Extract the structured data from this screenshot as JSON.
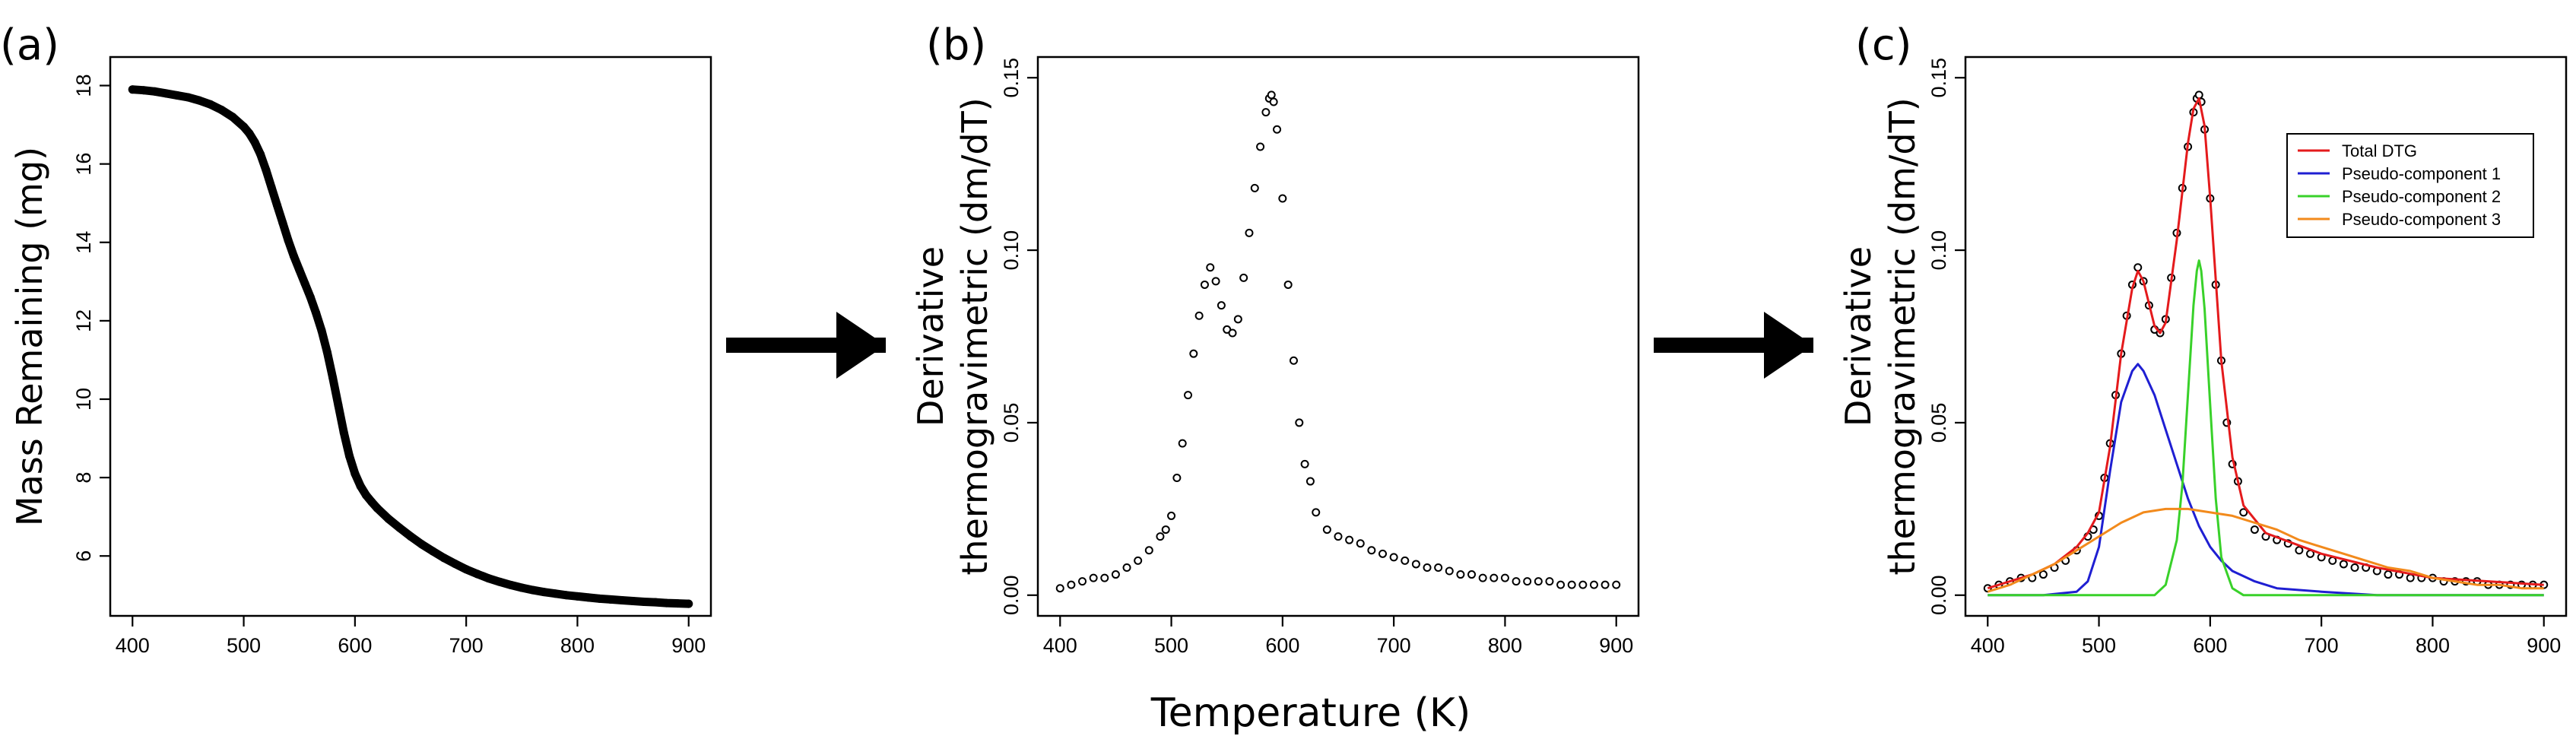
{
  "shared_xlabel": "Temperature (K)",
  "chart_data": [
    {
      "panel": "(a)",
      "type": "scatter",
      "ylabel": [
        "Mass Remaining (mg)"
      ],
      "xlim": [
        400,
        900
      ],
      "ylim": [
        5,
        18.2
      ],
      "xticks": [
        400,
        500,
        600,
        700,
        800,
        900
      ],
      "yticks": [
        6,
        8,
        10,
        12,
        14,
        16,
        18
      ],
      "series": [
        {
          "x": [
            400,
            410,
            420,
            430,
            440,
            450,
            460,
            470,
            480,
            490,
            500,
            505,
            510,
            515,
            520,
            525,
            530,
            535,
            540,
            545,
            550,
            555,
            560,
            565,
            570,
            575,
            580,
            585,
            590,
            595,
            600,
            605,
            610,
            615,
            620,
            630,
            640,
            650,
            660,
            670,
            680,
            690,
            700,
            710,
            720,
            730,
            740,
            750,
            760,
            770,
            780,
            790,
            800,
            810,
            820,
            830,
            840,
            850,
            860,
            870,
            880,
            890,
            900
          ],
          "y": [
            17.9,
            17.88,
            17.85,
            17.8,
            17.75,
            17.7,
            17.62,
            17.52,
            17.38,
            17.2,
            16.95,
            16.78,
            16.55,
            16.25,
            15.85,
            15.4,
            14.95,
            14.5,
            14.05,
            13.65,
            13.3,
            12.95,
            12.6,
            12.2,
            11.75,
            11.2,
            10.55,
            9.85,
            9.15,
            8.55,
            8.1,
            7.78,
            7.55,
            7.38,
            7.22,
            6.95,
            6.72,
            6.5,
            6.3,
            6.12,
            5.95,
            5.8,
            5.66,
            5.54,
            5.43,
            5.34,
            5.26,
            5.19,
            5.13,
            5.08,
            5.04,
            5.0,
            4.97,
            4.94,
            4.91,
            4.89,
            4.87,
            4.85,
            4.83,
            4.82,
            4.8,
            4.79,
            4.78
          ]
        }
      ]
    },
    {
      "panel": "(b)",
      "type": "scatter",
      "ylabel": [
        "Derivative",
        "thermogravimetric (dm/dT)"
      ],
      "xlim": [
        400,
        900
      ],
      "ylim": [
        0,
        0.15
      ],
      "xticks": [
        400,
        500,
        600,
        700,
        800,
        900
      ],
      "yticks": [
        0.0,
        0.05,
        0.1,
        0.15
      ],
      "ytick_labels": [
        "0.00",
        "0.05",
        "0.10",
        "0.15"
      ],
      "series": [
        {
          "x": [
            400,
            410,
            420,
            430,
            440,
            450,
            460,
            470,
            480,
            490,
            495,
            500,
            505,
            510,
            515,
            520,
            525,
            530,
            535,
            540,
            545,
            550,
            555,
            560,
            565,
            570,
            575,
            580,
            585,
            588,
            590,
            592,
            595,
            600,
            605,
            610,
            615,
            620,
            625,
            630,
            640,
            650,
            660,
            670,
            680,
            690,
            700,
            710,
            720,
            730,
            740,
            750,
            760,
            770,
            780,
            790,
            800,
            810,
            820,
            830,
            840,
            850,
            860,
            870,
            880,
            890,
            900
          ],
          "y": [
            0.002,
            0.003,
            0.004,
            0.005,
            0.005,
            0.006,
            0.008,
            0.01,
            0.013,
            0.017,
            0.019,
            0.023,
            0.034,
            0.044,
            0.058,
            0.07,
            0.081,
            0.09,
            0.095,
            0.091,
            0.084,
            0.077,
            0.076,
            0.08,
            0.092,
            0.105,
            0.118,
            0.13,
            0.14,
            0.144,
            0.145,
            0.143,
            0.135,
            0.115,
            0.09,
            0.068,
            0.05,
            0.038,
            0.033,
            0.024,
            0.019,
            0.017,
            0.016,
            0.015,
            0.013,
            0.012,
            0.011,
            0.01,
            0.009,
            0.008,
            0.008,
            0.007,
            0.006,
            0.006,
            0.005,
            0.005,
            0.005,
            0.004,
            0.004,
            0.004,
            0.004,
            0.003,
            0.003,
            0.003,
            0.003,
            0.003,
            0.003
          ]
        }
      ]
    },
    {
      "panel": "(c)",
      "type": "line",
      "ylabel": [
        "Derivative",
        "thermogravimetric (dm/dT)"
      ],
      "xlim": [
        400,
        900
      ],
      "ylim": [
        0,
        0.15
      ],
      "xticks": [
        400,
        500,
        600,
        700,
        800,
        900
      ],
      "yticks": [
        0.0,
        0.05,
        0.1,
        0.15
      ],
      "ytick_labels": [
        "0.00",
        "0.05",
        "0.10",
        "0.15"
      ],
      "legend_position": "top-right",
      "points": {
        "x": [
          400,
          410,
          420,
          430,
          440,
          450,
          460,
          470,
          480,
          490,
          495,
          500,
          505,
          510,
          515,
          520,
          525,
          530,
          535,
          540,
          545,
          550,
          555,
          560,
          565,
          570,
          575,
          580,
          585,
          588,
          590,
          592,
          595,
          600,
          605,
          610,
          615,
          620,
          625,
          630,
          640,
          650,
          660,
          670,
          680,
          690,
          700,
          710,
          720,
          730,
          740,
          750,
          760,
          770,
          780,
          790,
          800,
          810,
          820,
          830,
          840,
          850,
          860,
          870,
          880,
          890,
          900
        ],
        "y": [
          0.002,
          0.003,
          0.004,
          0.005,
          0.005,
          0.006,
          0.008,
          0.01,
          0.013,
          0.017,
          0.019,
          0.023,
          0.034,
          0.044,
          0.058,
          0.07,
          0.081,
          0.09,
          0.095,
          0.091,
          0.084,
          0.077,
          0.076,
          0.08,
          0.092,
          0.105,
          0.118,
          0.13,
          0.14,
          0.144,
          0.145,
          0.143,
          0.135,
          0.115,
          0.09,
          0.068,
          0.05,
          0.038,
          0.033,
          0.024,
          0.019,
          0.017,
          0.016,
          0.015,
          0.013,
          0.012,
          0.011,
          0.01,
          0.009,
          0.008,
          0.008,
          0.007,
          0.006,
          0.006,
          0.005,
          0.005,
          0.005,
          0.004,
          0.004,
          0.004,
          0.004,
          0.003,
          0.003,
          0.003,
          0.003,
          0.003,
          0.003
        ]
      },
      "series": [
        {
          "name": "Total DTG",
          "color": "#e41a1c",
          "x": [
            400,
            420,
            440,
            460,
            480,
            490,
            500,
            510,
            520,
            530,
            535,
            540,
            550,
            555,
            560,
            570,
            580,
            585,
            590,
            595,
            600,
            610,
            620,
            630,
            650,
            700,
            750,
            800,
            850,
            900
          ],
          "y": [
            0.002,
            0.004,
            0.006,
            0.009,
            0.014,
            0.018,
            0.024,
            0.043,
            0.07,
            0.089,
            0.094,
            0.091,
            0.078,
            0.076,
            0.079,
            0.103,
            0.131,
            0.141,
            0.144,
            0.136,
            0.115,
            0.068,
            0.04,
            0.026,
            0.018,
            0.012,
            0.008,
            0.005,
            0.004,
            0.003
          ]
        },
        {
          "name": "Pseudo-component 1",
          "color": "#1f1fd2",
          "x": [
            400,
            450,
            480,
            490,
            500,
            510,
            520,
            530,
            535,
            540,
            550,
            560,
            570,
            580,
            590,
            600,
            610,
            620,
            640,
            660,
            700,
            750,
            800,
            900
          ],
          "y": [
            0,
            0,
            0.001,
            0.004,
            0.014,
            0.036,
            0.056,
            0.065,
            0.067,
            0.065,
            0.058,
            0.048,
            0.038,
            0.028,
            0.02,
            0.014,
            0.01,
            0.007,
            0.004,
            0.002,
            0.001,
            0,
            0,
            0
          ]
        },
        {
          "name": "Pseudo-component 2",
          "color": "#39d12a",
          "x": [
            400,
            500,
            550,
            560,
            570,
            575,
            580,
            585,
            588,
            590,
            592,
            595,
            600,
            605,
            610,
            620,
            630,
            650,
            700,
            900
          ],
          "y": [
            0,
            0,
            0,
            0.003,
            0.016,
            0.032,
            0.058,
            0.084,
            0.094,
            0.097,
            0.094,
            0.083,
            0.055,
            0.028,
            0.011,
            0.002,
            0,
            0,
            0,
            0
          ]
        },
        {
          "name": "Pseudo-component 3",
          "color": "#f28a1c",
          "x": [
            400,
            420,
            440,
            460,
            480,
            500,
            520,
            540,
            560,
            570,
            580,
            600,
            620,
            640,
            660,
            680,
            700,
            720,
            740,
            760,
            780,
            800,
            820,
            840,
            860,
            880,
            900
          ],
          "y": [
            0.001,
            0.003,
            0.006,
            0.009,
            0.013,
            0.017,
            0.021,
            0.024,
            0.025,
            0.025,
            0.025,
            0.024,
            0.023,
            0.021,
            0.019,
            0.016,
            0.014,
            0.012,
            0.01,
            0.008,
            0.007,
            0.005,
            0.004,
            0.003,
            0.003,
            0.002,
            0.002
          ]
        }
      ]
    }
  ]
}
